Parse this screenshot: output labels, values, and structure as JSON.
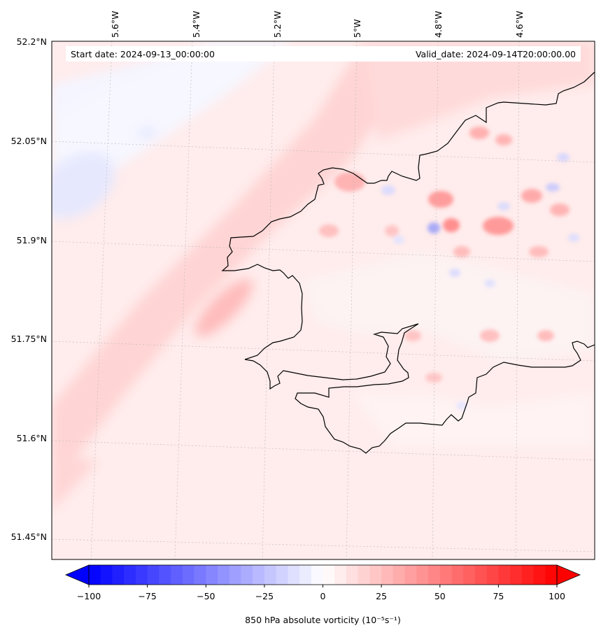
{
  "map": {
    "start_date": "Start date: 2024-09-13_00:00:00",
    "valid_date": "Valid_date: 2024-09-14T20:00:00.00",
    "lat_labels": [
      "52.2°N",
      "52.05°N",
      "51.9°N",
      "51.75°N",
      "51.6°N",
      "51.45°N"
    ],
    "lon_labels": [
      "5.6°W",
      "5.4°W",
      "5.2°W",
      "5°W",
      "4.8°W",
      "4.6°W"
    ],
    "field": "850 hPa absolute vorticity",
    "projection": "Lambert conformal (rotated graticule)"
  },
  "colorbar": {
    "label": "850 hPa absolute vorticity (10⁻⁵s⁻¹)",
    "ticks": [
      "−100",
      "−75",
      "−50",
      "−25",
      "0",
      "25",
      "50",
      "75",
      "100"
    ],
    "min": -100,
    "max": 100,
    "step": 5,
    "colormap": "bwr",
    "extend": "both"
  },
  "colors": {
    "low": "#0000ff",
    "mid": "#ffffff",
    "high": "#ff0000",
    "coastline": "#000000"
  }
}
